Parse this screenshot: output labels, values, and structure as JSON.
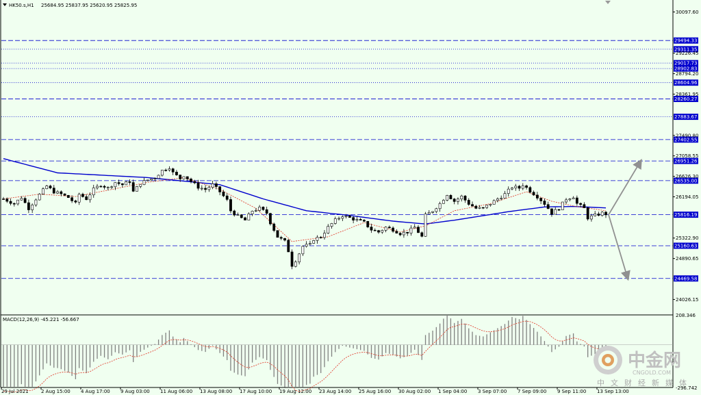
{
  "header": {
    "symbol": "HK50.s,H1",
    "ohlc": "25684.95 25837.95 25620.95 25825.95"
  },
  "macd_header": "MACD(12,26,9) -45.221 -56.667",
  "watermark": {
    "cn_name": "中金网",
    "domain": "CNGOLD.COM",
    "slogan": "中文财经新媒体"
  },
  "colors": {
    "background": "#f0fff0",
    "candles": "#000000",
    "ma_long": "#0000cd",
    "ma_short": "#e03020",
    "level_line": "#0000cd",
    "level_label_bg": "#0000cd",
    "arrow": "#909090",
    "macd_hist": "#808080",
    "macd_signal": "#e03020"
  },
  "chart_data": {
    "type": "candlestick",
    "symbol": "HK50.s",
    "timeframe": "H1",
    "y_range": [
      23700,
      30350
    ],
    "price_ticks": [
      30097.6,
      29226.45,
      28794.2,
      28361.95,
      27490.8,
      27058.55,
      26626.3,
      26194.05,
      25322.9,
      24890.65,
      24026.15
    ],
    "levels": [
      {
        "value": 29494.33,
        "label": "29494.33",
        "style": "dashed"
      },
      {
        "value": 29311.35,
        "label": "29311.35",
        "style": "dotted"
      },
      {
        "value": 29017.73,
        "label": "29017.73",
        "style": "dotted"
      },
      {
        "value": 28902.83,
        "label": "28902.83",
        "style": "dotted"
      },
      {
        "value": 28604.96,
        "label": "28604.96",
        "style": "dotted"
      },
      {
        "value": 28260.27,
        "label": "28260.27",
        "style": "dashed"
      },
      {
        "value": 27883.67,
        "label": "27883.67",
        "style": "dotted"
      },
      {
        "value": 27402.55,
        "label": "27402.55",
        "style": "dashed"
      },
      {
        "value": 26951.26,
        "label": "26951.26",
        "style": "dashed"
      },
      {
        "value": 26535.0,
        "label": "26535.00",
        "style": "dashed"
      },
      {
        "value": 25816.19,
        "label": "25816.19",
        "style": "dashed"
      },
      {
        "value": 25160.63,
        "label": "25160.63",
        "style": "dashed"
      },
      {
        "value": 24469.58,
        "label": "24469.58",
        "style": "dashed"
      }
    ],
    "x_labels": [
      "29 Jul 2021",
      "2 Aug 15:00",
      "4 Aug 17:00",
      "9 Aug 03:00",
      "11 Aug 06:00",
      "13 Aug 08:00",
      "17 Aug 10:00",
      "19 Aug 12:00",
      "23 Aug 14:00",
      "25 Aug 16:00",
      "30 Aug 02:00",
      "1 Sep 04:00",
      "3 Sep 07:00",
      "7 Sep 09:00",
      "9 Sep 11:00",
      "13 Sep 13:00"
    ],
    "close_path": [
      [
        0,
        26150
      ],
      [
        3,
        26050
      ],
      [
        5,
        26180
      ],
      [
        7,
        25950
      ],
      [
        9,
        26150
      ],
      [
        12,
        26420
      ],
      [
        14,
        26300
      ],
      [
        16,
        26250
      ],
      [
        18,
        26180
      ],
      [
        20,
        26050
      ],
      [
        21,
        26250
      ],
      [
        23,
        26150
      ],
      [
        25,
        26350
      ],
      [
        27,
        26450
      ],
      [
        29,
        26380
      ],
      [
        31,
        26500
      ],
      [
        33,
        26450
      ],
      [
        35,
        26520
      ],
      [
        36,
        26300
      ],
      [
        38,
        26480
      ],
      [
        40,
        26550
      ],
      [
        42,
        26600
      ],
      [
        44,
        26750
      ],
      [
        46,
        26820
      ],
      [
        47,
        26700
      ],
      [
        49,
        26580
      ],
      [
        50,
        26650
      ],
      [
        52,
        26520
      ],
      [
        54,
        26400
      ],
      [
        56,
        26350
      ],
      [
        58,
        26450
      ],
      [
        60,
        26300
      ],
      [
        62,
        26120
      ],
      [
        63,
        25900
      ],
      [
        65,
        25780
      ],
      [
        67,
        25700
      ],
      [
        69,
        25900
      ],
      [
        71,
        25950
      ],
      [
        73,
        25850
      ],
      [
        74,
        25650
      ],
      [
        76,
        25350
      ],
      [
        78,
        25250
      ],
      [
        79,
        25050
      ],
      [
        80,
        24750
      ],
      [
        81,
        24850
      ],
      [
        83,
        25150
      ],
      [
        85,
        25180
      ],
      [
        86,
        25300
      ],
      [
        88,
        25350
      ],
      [
        90,
        25550
      ],
      [
        92,
        25700
      ],
      [
        94,
        25800
      ],
      [
        96,
        25750
      ],
      [
        98,
        25700
      ],
      [
        100,
        25650
      ],
      [
        102,
        25500
      ],
      [
        104,
        25450
      ],
      [
        106,
        25550
      ],
      [
        108,
        25500
      ],
      [
        110,
        25420
      ],
      [
        112,
        25450
      ],
      [
        114,
        25550
      ],
      [
        116,
        25350
      ],
      [
        117,
        25800
      ],
      [
        119,
        25900
      ],
      [
        121,
        26050
      ],
      [
        123,
        26250
      ],
      [
        125,
        26100
      ],
      [
        127,
        26200
      ],
      [
        129,
        26050
      ],
      [
        131,
        25950
      ],
      [
        133,
        25950
      ],
      [
        135,
        26050
      ],
      [
        137,
        26150
      ],
      [
        139,
        26250
      ],
      [
        141,
        26400
      ],
      [
        143,
        26380
      ],
      [
        144,
        26450
      ],
      [
        146,
        26320
      ],
      [
        148,
        26200
      ],
      [
        150,
        26050
      ],
      [
        152,
        25850
      ],
      [
        154,
        25950
      ],
      [
        156,
        26150
      ],
      [
        158,
        26200
      ],
      [
        159,
        26050
      ],
      [
        161,
        25950
      ],
      [
        162,
        25750
      ],
      [
        164,
        25800
      ],
      [
        166,
        25850
      ],
      [
        167,
        25830
      ]
    ],
    "ma_long": [
      [
        0,
        27000
      ],
      [
        15,
        26700
      ],
      [
        40,
        26600
      ],
      [
        60,
        26450
      ],
      [
        72,
        26150
      ],
      [
        84,
        25900
      ],
      [
        96,
        25800
      ],
      [
        108,
        25680
      ],
      [
        117,
        25620
      ],
      [
        125,
        25700
      ],
      [
        140,
        25880
      ],
      [
        150,
        25980
      ],
      [
        158,
        25990
      ],
      [
        167,
        25960
      ]
    ],
    "ma_short": [
      [
        0,
        26150
      ],
      [
        10,
        26250
      ],
      [
        20,
        26200
      ],
      [
        30,
        26350
      ],
      [
        40,
        26500
      ],
      [
        50,
        26600
      ],
      [
        60,
        26350
      ],
      [
        70,
        25950
      ],
      [
        80,
        25250
      ],
      [
        90,
        25350
      ],
      [
        100,
        25650
      ],
      [
        110,
        25450
      ],
      [
        117,
        25580
      ],
      [
        125,
        25900
      ],
      [
        135,
        26050
      ],
      [
        145,
        26300
      ],
      [
        152,
        26100
      ],
      [
        158,
        26000
      ],
      [
        167,
        25900
      ]
    ],
    "arrows": [
      {
        "from": 25816.19,
        "to": 26951.26,
        "direction": "up"
      },
      {
        "from": 25816.19,
        "to": 24469.58,
        "direction": "down"
      }
    ],
    "macd": {
      "label": "MACD(12,26,9)",
      "value": -45.221,
      "signal": -56.667,
      "y_range": [
        -296.742,
        208.346
      ],
      "ticks": [
        208.346,
        -296.742
      ]
    }
  }
}
